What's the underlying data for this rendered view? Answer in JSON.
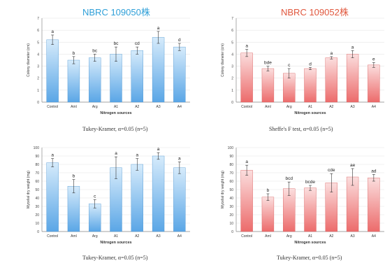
{
  "colors": {
    "blue_title": "#2e9fd8",
    "red_title": "#e0573d",
    "blue_bar": "#6cb0ea",
    "red_bar": "#ef7c7c"
  },
  "chart_data": [
    {
      "type": "bar",
      "title": "NBRC 109050株",
      "xlabel": "Nitrogen sources",
      "ylabel": "Colony diameter (cm)",
      "ylim": [
        0,
        7
      ],
      "yticks": [
        "0",
        "1",
        "2",
        "3",
        "4",
        "5",
        "6",
        "7"
      ],
      "categories": [
        "Control",
        "Aml",
        "Arg",
        "A1",
        "A2",
        "A3",
        "A4"
      ],
      "values": [
        5.2,
        3.5,
        3.7,
        4.0,
        4.3,
        5.4,
        4.6
      ],
      "errors": [
        0.4,
        0.3,
        0.3,
        0.6,
        0.3,
        0.5,
        0.3
      ],
      "letters": [
        "a",
        "b",
        "bc",
        "bc",
        "cd",
        "a",
        "d"
      ],
      "caption": "Tukey-Kramer, α=0.05 (n=5)",
      "color": "blue"
    },
    {
      "type": "bar",
      "title": "NBRC 109052株",
      "xlabel": "Nitrogen sources",
      "ylabel": "Colony diameter (cm)",
      "ylim": [
        0,
        7
      ],
      "yticks": [
        "0",
        "1",
        "2",
        "3",
        "4",
        "5",
        "6",
        "7"
      ],
      "categories": [
        "Control",
        "Aml",
        "Arg",
        "A1",
        "A2",
        "A3",
        "A4"
      ],
      "values": [
        4.1,
        2.8,
        2.4,
        2.8,
        3.7,
        4.0,
        3.1
      ],
      "errors": [
        0.3,
        0.2,
        0.4,
        0.1,
        0.1,
        0.3,
        0.2
      ],
      "letters": [
        "a",
        "bde",
        "c",
        "d",
        "a",
        "a",
        "e"
      ],
      "caption": "Sheffe's F test, α=0.05 (n=5)",
      "color": "red"
    },
    {
      "type": "bar",
      "title": "",
      "xlabel": "Nitrogen sources",
      "ylabel": "Mycelial dry weight (mg)",
      "ylim": [
        0,
        100
      ],
      "yticks": [
        "0",
        "10",
        "20",
        "30",
        "40",
        "50",
        "60",
        "70",
        "80",
        "90",
        "100"
      ],
      "categories": [
        "Control",
        "Aml",
        "Arg",
        "A1",
        "A2",
        "A3",
        "A4"
      ],
      "values": [
        82,
        54,
        33,
        76,
        80,
        90,
        76
      ],
      "errors": [
        5,
        8,
        5,
        13,
        7,
        4,
        7
      ],
      "letters": [
        "a",
        "b",
        "c",
        "a",
        "a",
        "a",
        "a"
      ],
      "caption": "Tukey-Kramer, α=0.05 (n=5)",
      "color": "blue"
    },
    {
      "type": "bar",
      "title": "",
      "xlabel": "Nitrogen sources",
      "ylabel": "Mycelial dry weight (mg)",
      "ylim": [
        0,
        100
      ],
      "yticks": [
        "0",
        "10",
        "20",
        "30",
        "40",
        "50",
        "60",
        "70",
        "80",
        "90",
        "100"
      ],
      "categories": [
        "Control",
        "Aml",
        "Arg",
        "A1",
        "A2",
        "A3",
        "A4"
      ],
      "values": [
        73,
        41,
        51,
        52,
        58,
        65,
        64
      ],
      "errors": [
        6,
        4,
        8,
        3,
        11,
        10,
        4
      ],
      "letters": [
        "a",
        "b",
        "bcd",
        "bcde",
        "cde",
        "ae",
        "ad"
      ],
      "caption": "Tukey-Kramer, α=0.05 (n=5)",
      "color": "red"
    }
  ]
}
